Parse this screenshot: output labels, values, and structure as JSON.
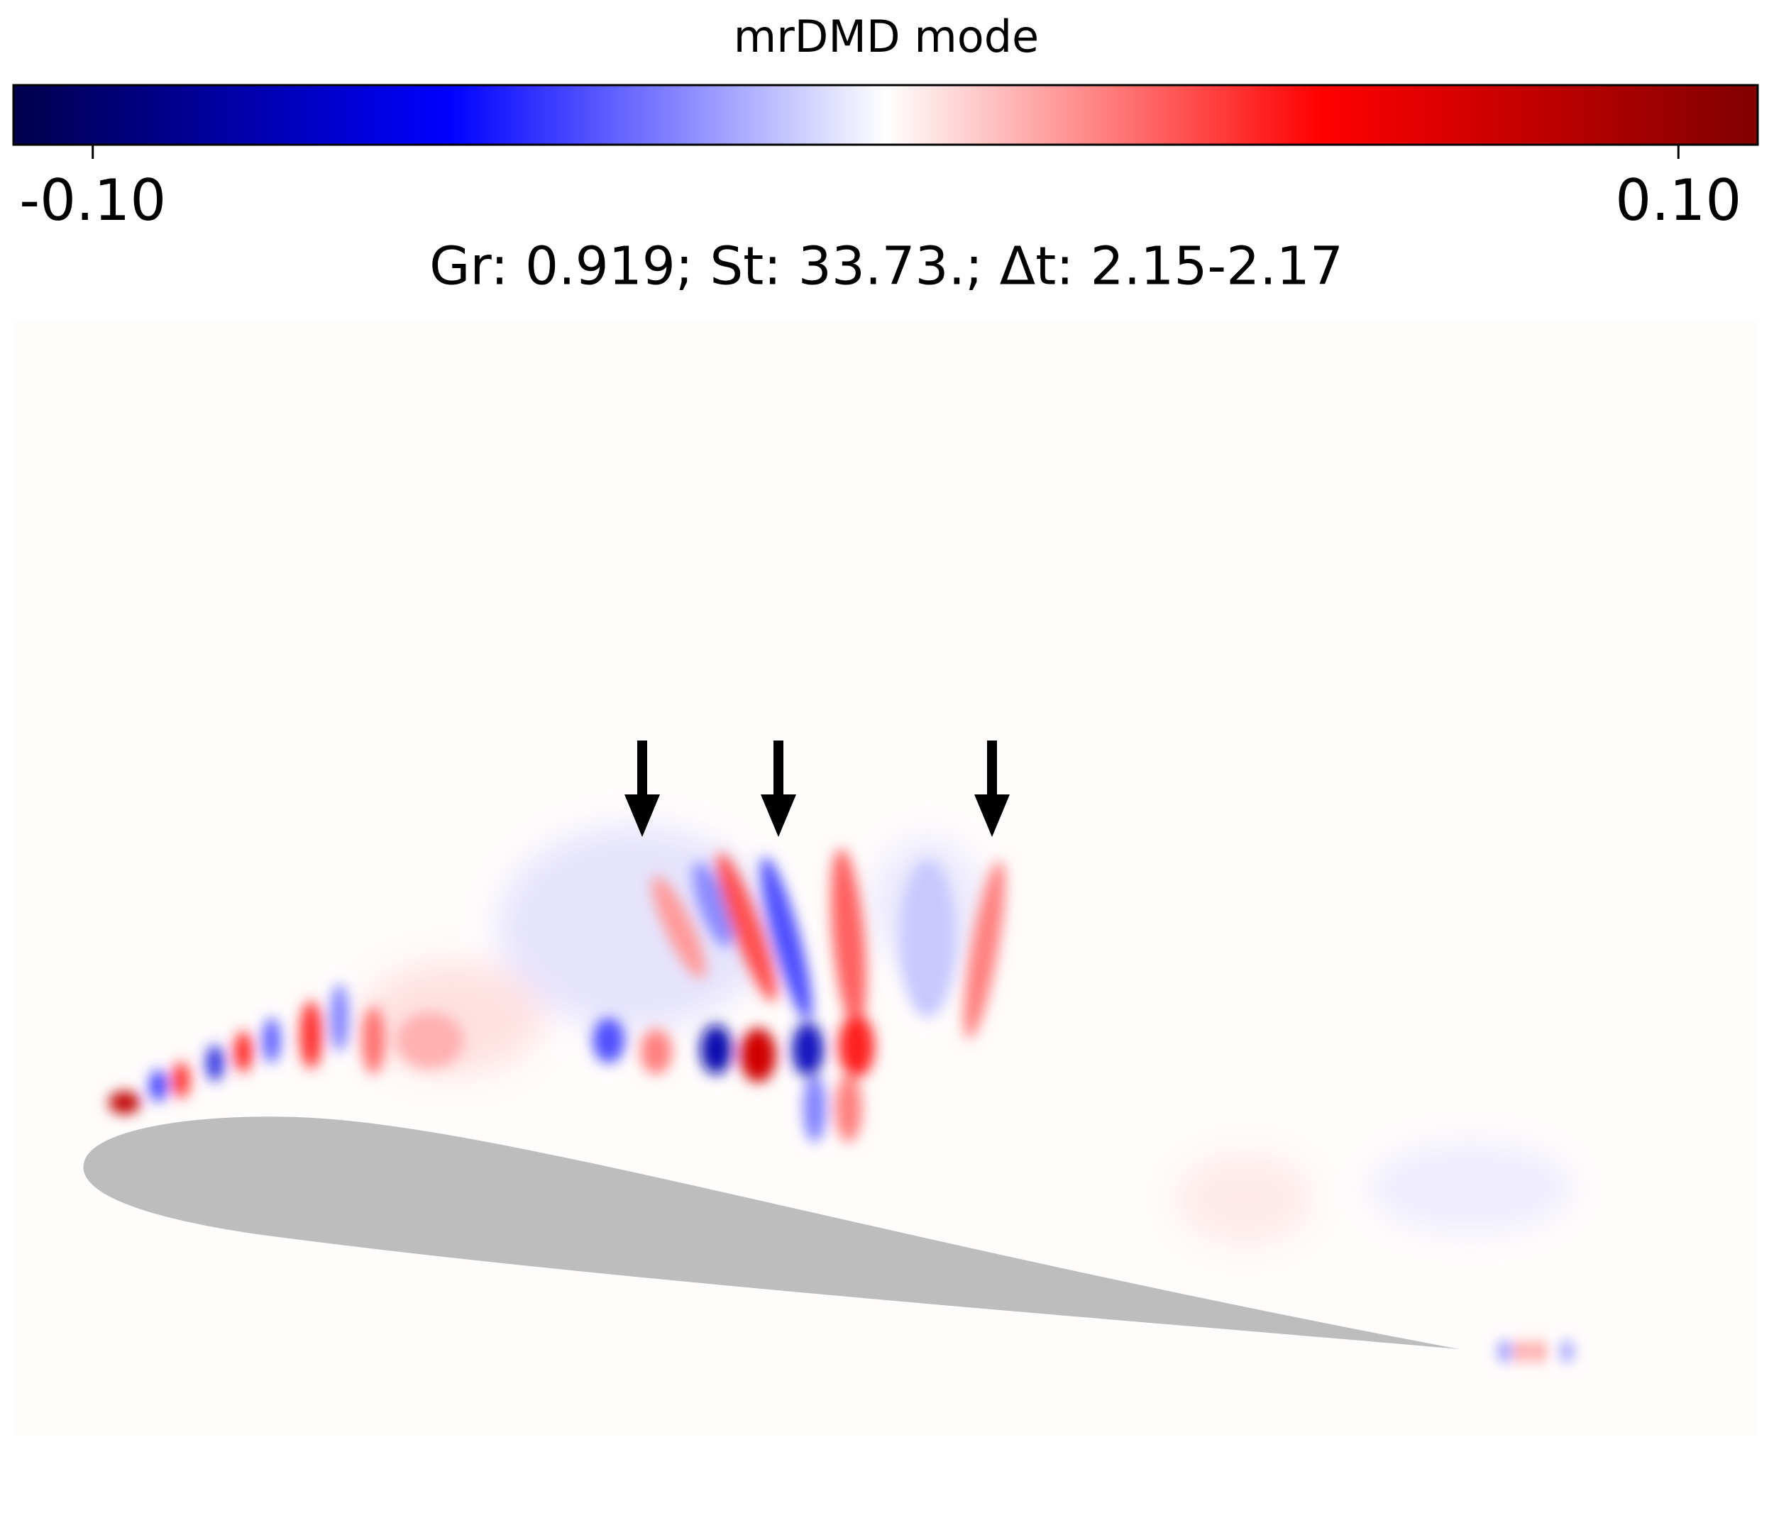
{
  "chart_data": {
    "type": "field",
    "title": "mrDMD mode",
    "subtitle": "Gr: 0.919; St: 33.73.; Δt: 2.15-2.17",
    "colormap": [
      "#00004c",
      "#0000ff",
      "#ffffff",
      "#ff0000",
      "#800000"
    ],
    "clim": [
      -0.11,
      0.11
    ],
    "cticks": [
      {
        "value": -0.1,
        "label": "-0.10"
      },
      {
        "value": 0.1,
        "label": "0.10"
      }
    ]
  }
}
